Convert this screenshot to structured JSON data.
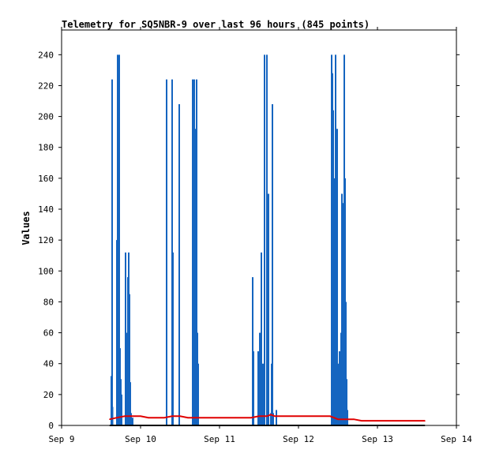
{
  "chart_data": {
    "type": "line",
    "title": "Telemetry for SQ5NBR-9 over last 96 hours (845 points)",
    "xlabel": "",
    "ylabel": "Values",
    "x_ticks": [
      "Sep 9",
      "Sep 10",
      "Sep 11",
      "Sep 12",
      "Sep 13",
      "Sep 14"
    ],
    "x_unit": "days since Sep 9 00:00",
    "xlim": [
      0,
      5
    ],
    "y_ticks": [
      0,
      20,
      40,
      60,
      80,
      100,
      120,
      140,
      160,
      180,
      200,
      220,
      240
    ],
    "ylim": [
      0,
      256
    ],
    "grid": false,
    "legend": "none",
    "colors": {
      "blue_series": "#1565c0",
      "red_series": "#e00000",
      "black_series": "#000000",
      "axis": "#000000"
    },
    "series": [
      {
        "name": "",
        "color": "#1565c0",
        "style": "spikes",
        "x": [
          0.63,
          0.64,
          0.645,
          0.7,
          0.71,
          0.72,
          0.73,
          0.74,
          0.75,
          0.76,
          0.81,
          0.82,
          0.84,
          0.85,
          0.86,
          0.87,
          0.88,
          0.9,
          1.33,
          1.4,
          1.41,
          1.49,
          1.66,
          1.67,
          1.68,
          1.69,
          1.7,
          1.71,
          1.72,
          1.73,
          2.42,
          2.43,
          2.49,
          2.51,
          2.53,
          2.55,
          2.57,
          2.6,
          2.61,
          2.62,
          2.65,
          2.66,
          2.67,
          2.68,
          2.72,
          3.42,
          3.43,
          3.44,
          3.45,
          3.47,
          3.48,
          3.49,
          3.5,
          3.51,
          3.52,
          3.54,
          3.55,
          3.56,
          3.58,
          3.59,
          3.6,
          3.61,
          3.62
        ],
        "y": [
          32,
          224,
          12,
          120,
          240,
          160,
          240,
          50,
          30,
          20,
          112,
          60,
          96,
          112,
          85,
          28,
          8,
          5,
          224,
          224,
          112,
          208,
          224,
          150,
          224,
          192,
          112,
          224,
          60,
          40,
          96,
          48,
          48,
          60,
          112,
          40,
          240,
          240,
          100,
          150,
          8,
          40,
          208,
          8,
          10,
          240,
          228,
          204,
          160,
          240,
          64,
          192,
          30,
          40,
          48,
          60,
          150,
          144,
          240,
          160,
          80,
          30,
          10
        ]
      },
      {
        "name": "",
        "color": "#e00000",
        "style": "line",
        "x": [
          0.61,
          0.7,
          0.8,
          0.9,
          1.0,
          1.1,
          1.2,
          1.3,
          1.4,
          1.5,
          1.6,
          1.7,
          1.8,
          2.0,
          2.2,
          2.4,
          2.5,
          2.6,
          2.65,
          2.7,
          2.8,
          3.0,
          3.2,
          3.4,
          3.45,
          3.5,
          3.6,
          3.7,
          3.8,
          4.0,
          4.2,
          4.4,
          4.6
        ],
        "y": [
          4,
          5,
          6,
          6,
          6,
          5,
          5,
          5,
          6,
          6,
          5,
          5,
          5,
          5,
          5,
          5,
          6,
          6,
          7,
          6,
          6,
          6,
          6,
          6,
          5,
          4,
          4,
          4,
          3,
          3,
          3,
          3,
          3
        ]
      },
      {
        "name": "",
        "color": "#000000",
        "style": "line",
        "x": [
          0.61,
          4.6
        ],
        "y": [
          0,
          0
        ]
      }
    ]
  }
}
